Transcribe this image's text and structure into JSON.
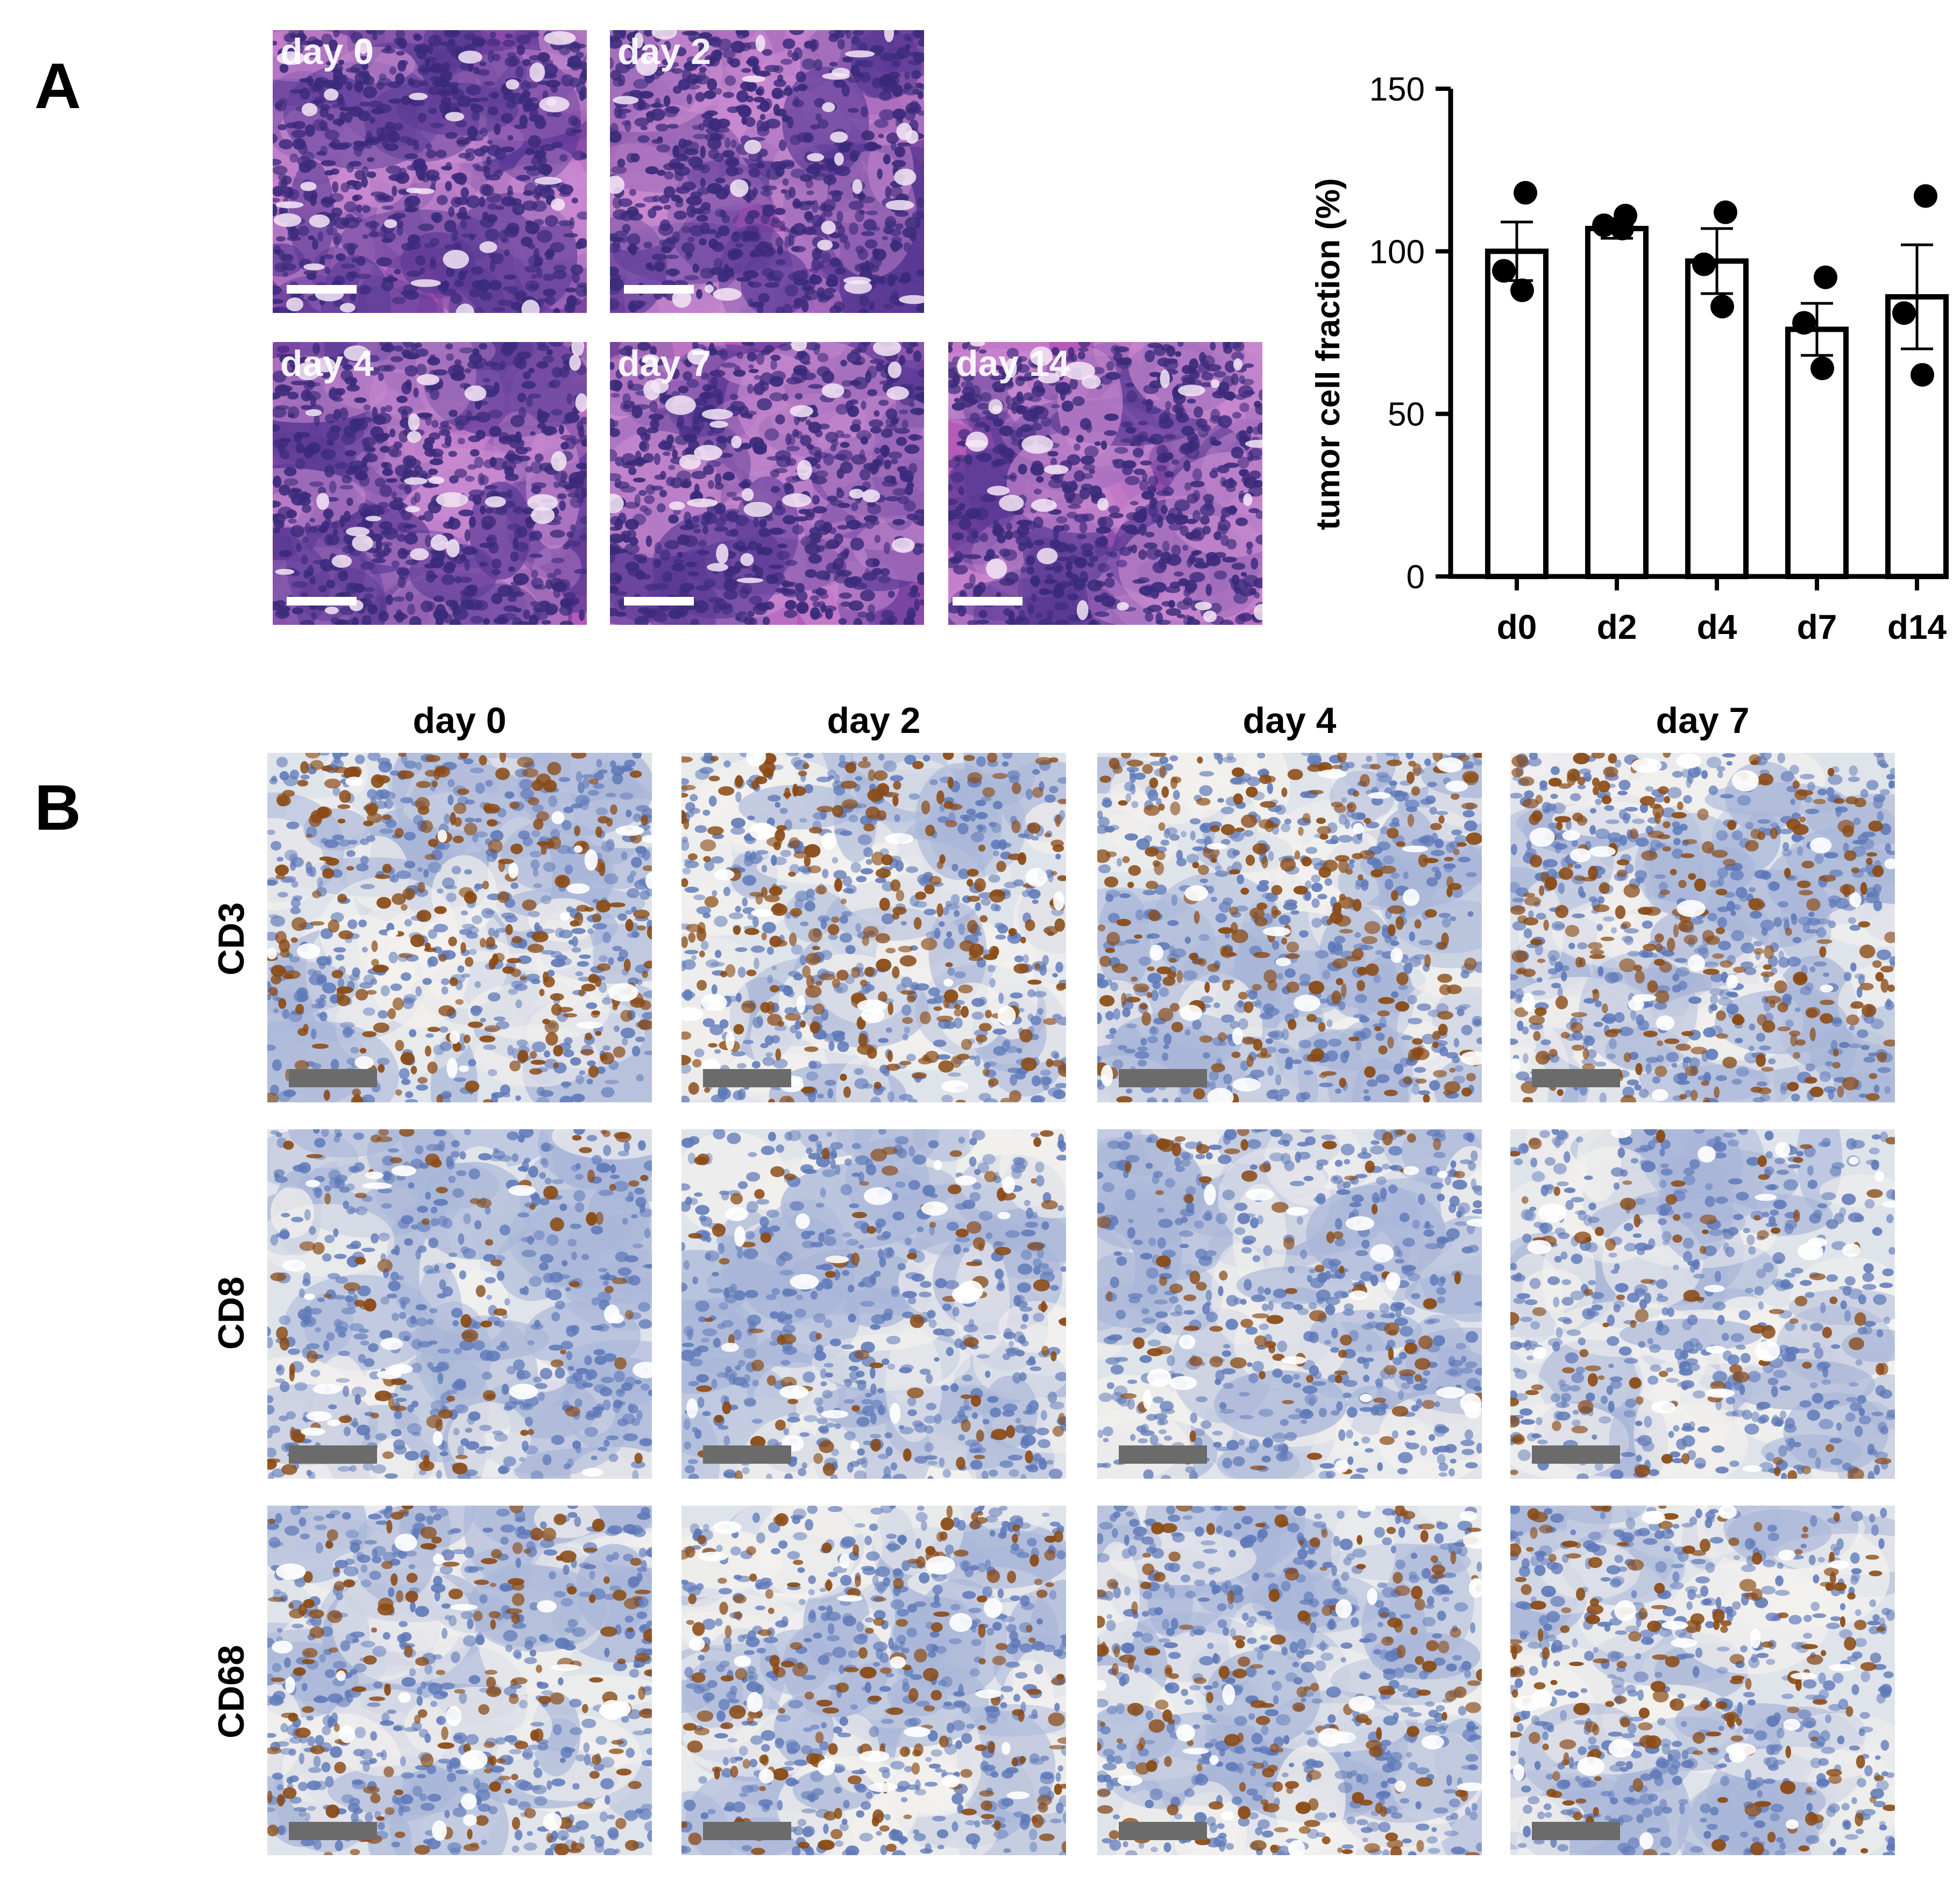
{
  "panel_a": {
    "letter": "A",
    "images": [
      {
        "label": "day 0",
        "stain": "he",
        "scale_bar_color": "#ffffff"
      },
      {
        "label": "day 2",
        "stain": "he",
        "scale_bar_color": "#ffffff"
      },
      {
        "label": "day 4",
        "stain": "he",
        "scale_bar_color": "#ffffff"
      },
      {
        "label": "day 7",
        "stain": "he",
        "scale_bar_color": "#ffffff"
      },
      {
        "label": "day 14",
        "stain": "he",
        "scale_bar_color": "#ffffff"
      }
    ]
  },
  "panel_b": {
    "letter": "B",
    "columns": [
      "day 0",
      "day 2",
      "day 4",
      "day 7"
    ],
    "rows": [
      "CD3",
      "CD8",
      "CD68"
    ],
    "scale_bar_color": "#6b6b6b"
  },
  "colors": {
    "he_background": "#b45ab8",
    "he_nuclei": "#3a2a7a",
    "ihc_background": "#dfe3ea",
    "ihc_hematoxylin": "#5d78b8",
    "ihc_dab": "#8a4a14"
  },
  "chart_data": {
    "type": "bar",
    "categories": [
      "d0",
      "d2",
      "d4",
      "d7",
      "d14"
    ],
    "values": [
      100,
      107,
      97,
      76,
      86
    ],
    "errors": [
      9,
      3,
      10,
      8,
      16
    ],
    "points": [
      [
        118,
        94,
        88
      ],
      [
        111,
        108,
        107
      ],
      [
        112,
        96,
        83
      ],
      [
        92,
        78,
        64
      ],
      [
        117,
        81,
        62
      ]
    ],
    "ylabel": "tumor cell fraction (%)",
    "xlabel": "",
    "ylim": [
      0,
      150
    ],
    "yticks": [
      0,
      50,
      100,
      150
    ],
    "grid": false,
    "bar_fill": "#ffffff",
    "bar_stroke": "#000000"
  }
}
